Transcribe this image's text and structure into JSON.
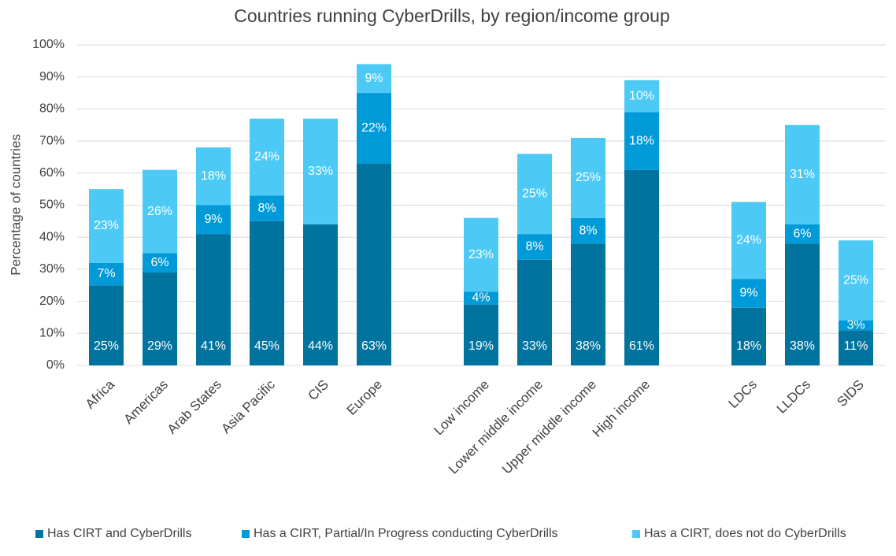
{
  "chart_data": {
    "type": "bar",
    "stacked": true,
    "title": "Countries running CyberDrills, by region/income group",
    "y_label": "Percentage of countries",
    "categories": [
      "Africa",
      "Americas",
      "Arab States",
      "Asia Pacific",
      "CIS",
      "Europe",
      null,
      "Low income",
      "Lower middle income",
      "Upper middle income",
      "High income",
      null,
      "LDCs",
      "LLDCs",
      "SIDS"
    ],
    "series": [
      {
        "name": "Has CIRT and CyberDrills",
        "color": "#00739e",
        "values": [
          25,
          29,
          41,
          45,
          44,
          63,
          null,
          19,
          33,
          38,
          61,
          null,
          18,
          38,
          11
        ],
        "value_labels": [
          "25%",
          "29%",
          "41%",
          "45%",
          "44%",
          "63%",
          null,
          "19%",
          "33%",
          "38%",
          "61%",
          null,
          "18%",
          "38%",
          "11%"
        ]
      },
      {
        "name": "Has a CIRT, Partial/In Progress conducting CyberDrills",
        "color": "#009ad8",
        "values": [
          7,
          6,
          9,
          8,
          null,
          22,
          null,
          4,
          8,
          8,
          18,
          null,
          9,
          6,
          3
        ],
        "value_labels": [
          "7%",
          "6%",
          "9%",
          "8%",
          null,
          "22%",
          null,
          "4%",
          "8%",
          "8%",
          "18%",
          null,
          "9%",
          "6%",
          "3%"
        ]
      },
      {
        "name": "Has a CIRT, does not do CyberDrills",
        "color": "#4dc9f6",
        "values": [
          23,
          26,
          18,
          24,
          33,
          9,
          null,
          23,
          25,
          25,
          10,
          null,
          24,
          31,
          25
        ],
        "value_labels": [
          "23%",
          "26%",
          "18%",
          "24%",
          "33%",
          "9%",
          null,
          "23%",
          "25%",
          "25%",
          "10%",
          null,
          "24%",
          "31%",
          "25%"
        ]
      }
    ],
    "ylim": [
      0,
      100
    ],
    "yticks": [
      {
        "value": 0,
        "label": "0%"
      },
      {
        "value": 10,
        "label": "10%"
      },
      {
        "value": 20,
        "label": "20%"
      },
      {
        "value": 30,
        "label": "30%"
      },
      {
        "value": 40,
        "label": "40%"
      },
      {
        "value": 50,
        "label": "50%"
      },
      {
        "value": 60,
        "label": "60%"
      },
      {
        "value": 70,
        "label": "70%"
      },
      {
        "value": 80,
        "label": "80%"
      },
      {
        "value": 90,
        "label": "90%"
      },
      {
        "value": 100,
        "label": "100%"
      }
    ],
    "grid": true,
    "legend": "bottom"
  }
}
